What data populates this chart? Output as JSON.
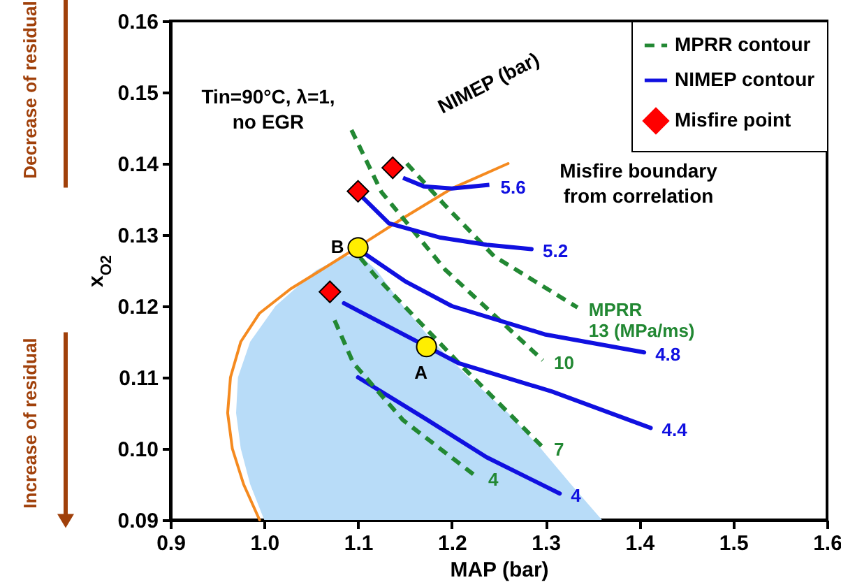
{
  "chart_data": {
    "type": "line",
    "xlabel": "MAP (bar)",
    "ylabel": "x$_{O2}$",
    "xlim": [
      0.9,
      1.6
    ],
    "ylim": [
      0.09,
      0.16
    ],
    "xticks": [
      0.9,
      {
        "value": 1.0,
        "label": "1.0"
      },
      1.1,
      1.2,
      1.3,
      1.4,
      1.5,
      1.6
    ],
    "yticks": [
      0.09,
      {
        "value": 0.1,
        "label": "0.10"
      },
      0.11,
      0.12,
      0.13,
      0.14,
      0.15,
      0.16
    ],
    "legend": "top right",
    "series": [
      {
        "type": "area",
        "color": "#b8dcf8",
        "x": [
          1.0,
          0.985,
          0.975,
          0.97,
          0.972,
          0.985,
          1.012,
          1.055,
          1.085,
          1.103,
          1.12,
          1.148,
          1.18,
          1.218,
          1.26,
          1.295,
          1.327,
          1.36
        ],
        "values": [
          0.09,
          0.095,
          0.1,
          0.105,
          0.11,
          0.115,
          0.12,
          0.125,
          0.127,
          0.127,
          0.125,
          0.12,
          0.115,
          0.11,
          0.105,
          0.1,
          0.095,
          0.09
        ]
      },
      {
        "color": "#f58a1f",
        "x": [
          0.995,
          0.978,
          0.966,
          0.961,
          0.964,
          0.975,
          0.995,
          1.028,
          1.06,
          1.1,
          1.15,
          1.2,
          1.26
        ],
        "values": [
          0.09,
          0.095,
          0.1,
          0.105,
          0.11,
          0.115,
          0.119,
          0.1224,
          0.125,
          0.1283,
          0.1325,
          0.1365,
          0.14
        ]
      },
      {
        "name": "MPRR contour",
        "color": "#228833",
        "line_style": "dashed",
        "x": [
          1.075,
          1.095,
          1.148,
          1.227
        ],
        "values": [
          0.118,
          0.112,
          0.104,
          0.096
        ]
      },
      {
        "color": "#228833",
        "line_style": "dashed",
        "x": [
          1.091,
          1.118,
          1.212,
          1.297
        ],
        "values": [
          0.1286,
          0.1243,
          0.1114,
          0.1002
        ]
      },
      {
        "color": "#228833",
        "line_style": "dashed",
        "x": [
          1.093,
          1.125,
          1.193,
          1.297
        ],
        "values": [
          0.1447,
          0.136,
          0.1251,
          0.1124
        ]
      },
      {
        "color": "#228833",
        "line_style": "dashed",
        "x": [
          1.152,
          1.193,
          1.245,
          1.334
        ],
        "values": [
          0.14,
          0.1341,
          0.127,
          0.1198
        ]
      },
      {
        "name": "NIMEP contour",
        "color": "#1010e0",
        "x": [
          1.148,
          1.17,
          1.2,
          1.24
        ],
        "values": [
          0.138,
          0.1368,
          0.1365,
          0.137
        ]
      },
      {
        "color": "#1010e0",
        "x": [
          1.103,
          1.133,
          1.188,
          1.237,
          1.285
        ],
        "values": [
          0.1355,
          0.1316,
          0.1296,
          0.1286,
          0.128
        ]
      },
      {
        "color": "#1010e0",
        "x": [
          1.1,
          1.15,
          1.2,
          1.3,
          1.405
        ],
        "values": [
          0.128,
          0.1235,
          0.12,
          0.116,
          0.1135
        ]
      },
      {
        "color": "#1010e0",
        "x": [
          1.085,
          1.207,
          1.307,
          1.412
        ],
        "values": [
          0.1204,
          0.112,
          0.108,
          0.1029
        ]
      },
      {
        "color": "#1010e0",
        "x": [
          1.1,
          1.173,
          1.237,
          1.315
        ],
        "values": [
          0.11,
          0.1041,
          0.0988,
          0.0937
        ]
      },
      {
        "type": "scatter",
        "name": "Misfire point",
        "color": "#ff0000",
        "marker": "diamond",
        "x": [
          1.137,
          1.1,
          1.07
        ],
        "values": [
          0.1394,
          0.1361,
          0.122
        ]
      },
      {
        "type": "scatter",
        "color": "#ffee00",
        "marker": "circle",
        "x": [
          1.1,
          1.173
        ],
        "values": [
          0.1282,
          0.1143
        ]
      }
    ],
    "annotations": [
      "Tin=90°C, λ=1,\nno EGR",
      "NIMEP (bar)",
      "Misfire boundary\nfrom correlation",
      {
        "text": "MPRR\n13 (MPa/ms)",
        "x": 1.334,
        "y": 0.1198
      },
      {
        "text": "10",
        "x": 1.297,
        "y": 0.1124
      },
      {
        "text": "7",
        "x": 1.297,
        "y": 0.1002
      },
      {
        "text": "4",
        "x": 1.227,
        "y": 0.096
      },
      {
        "text": "5.6",
        "x": 1.24,
        "y": 0.137
      },
      {
        "text": "5.2",
        "x": 1.285,
        "y": 0.128
      },
      {
        "text": "4.8",
        "x": 1.405,
        "y": 0.1135
      },
      {
        "text": "4.4",
        "x": 1.412,
        "y": 0.1029
      },
      {
        "text": "4",
        "x": 1.315,
        "y": 0.0937
      },
      {
        "text": "B",
        "x": 1.1,
        "y": 0.1282
      },
      {
        "text": "A",
        "x": 1.173,
        "y": 0.1143
      },
      "Decrease of residual",
      "Increase of residual"
    ]
  }
}
